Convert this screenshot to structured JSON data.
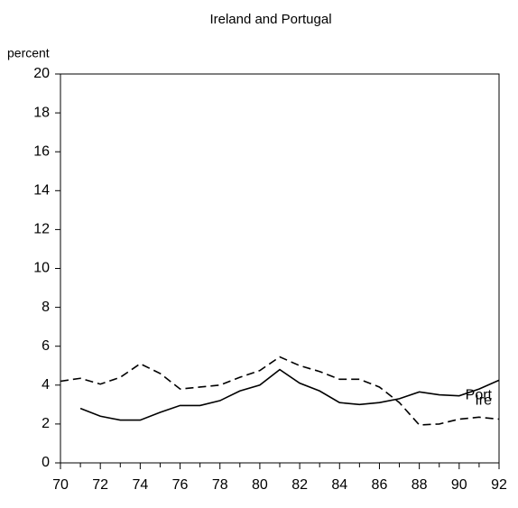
{
  "chart_data": {
    "type": "line",
    "title": "Ireland and Portugal",
    "y_label": "percent",
    "x": [
      70,
      71,
      72,
      73,
      74,
      75,
      76,
      77,
      78,
      79,
      80,
      81,
      82,
      83,
      84,
      85,
      86,
      87,
      88,
      89,
      90,
      91,
      92
    ],
    "series": [
      {
        "name": "Ire",
        "color": "#000000",
        "dashed": true,
        "values": [
          4.2,
          4.35,
          4.05,
          4.4,
          5.1,
          4.6,
          3.8,
          3.9,
          4.0,
          4.4,
          4.75,
          5.45,
          5.0,
          4.7,
          4.3,
          4.3,
          3.9,
          3.1,
          1.95,
          2.0,
          2.25,
          2.35,
          2.25
        ]
      },
      {
        "name": "Port",
        "color": "#000000",
        "dashed": false,
        "values": [
          null,
          2.8,
          2.4,
          2.2,
          2.2,
          2.6,
          2.95,
          2.95,
          3.2,
          3.7,
          4.0,
          4.8,
          4.1,
          3.7,
          3.1,
          3.0,
          3.1,
          3.3,
          3.65,
          3.5,
          3.45,
          3.8,
          4.25
        ]
      }
    ],
    "xlim": [
      70,
      92
    ],
    "xticks": [
      70,
      72,
      74,
      76,
      78,
      80,
      82,
      84,
      86,
      88,
      90,
      92
    ],
    "ylim": [
      0,
      20
    ],
    "yticks": [
      0,
      2,
      4,
      6,
      8,
      10,
      12,
      14,
      16,
      18,
      20
    ],
    "grid": false
  }
}
